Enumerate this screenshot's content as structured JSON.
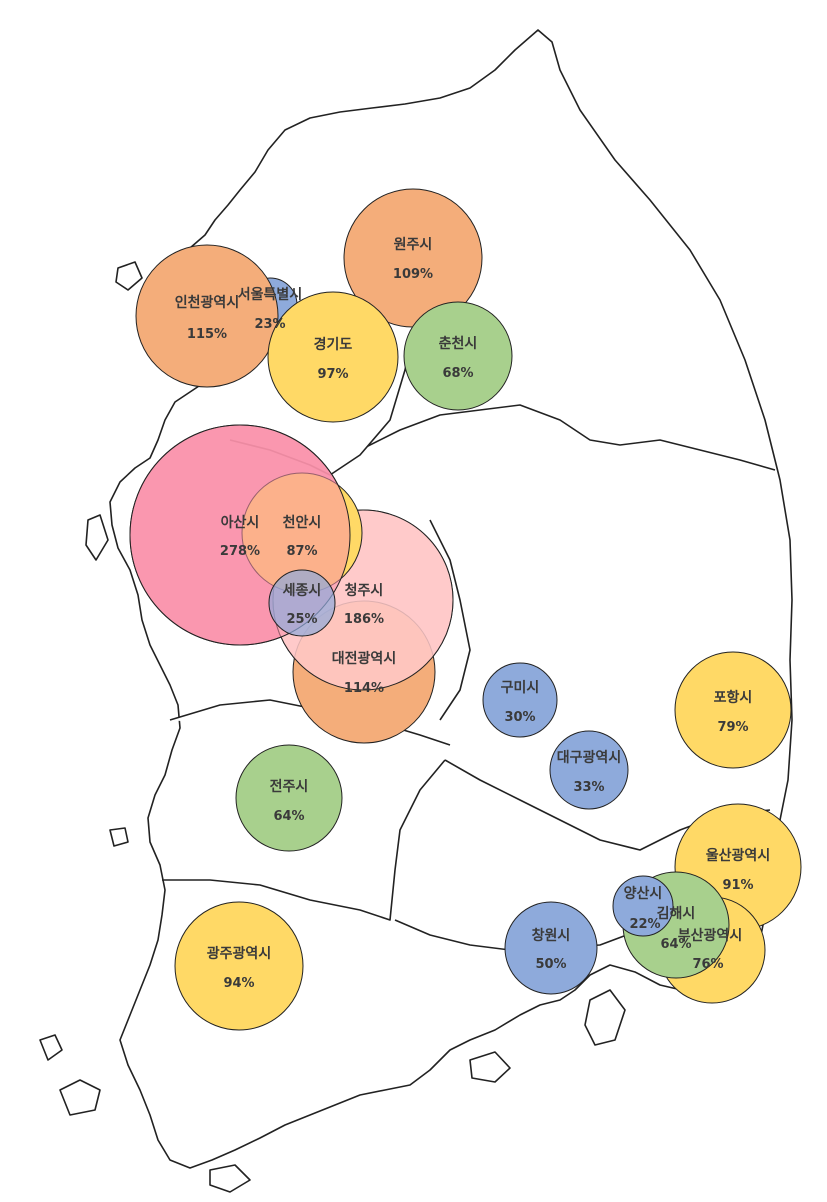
{
  "map": {
    "regions": [
      {
        "name": "아산시",
        "value": "278%",
        "ratio": 278,
        "color": "#f990aa"
      },
      {
        "name": "청주시",
        "value": "186%",
        "ratio": 186,
        "color": "#ffc9c9"
      },
      {
        "name": "인천광역시",
        "value": "115%",
        "ratio": 115,
        "color": "#f4ad7a"
      },
      {
        "name": "대전광역시",
        "value": "114%",
        "ratio": 114,
        "color": "#f4ad7a"
      },
      {
        "name": "원주시",
        "value": "109%",
        "ratio": 109,
        "color": "#f4ad7a"
      },
      {
        "name": "경기도",
        "value": "97%",
        "ratio": 97,
        "color": "#ffd966"
      },
      {
        "name": "광주광역시",
        "value": "94%",
        "ratio": 94,
        "color": "#ffd966"
      },
      {
        "name": "울산광역시",
        "value": "91%",
        "ratio": 91,
        "color": "#ffd966"
      },
      {
        "name": "천안시",
        "value": "87%",
        "ratio": 87,
        "color": "#ffd966"
      },
      {
        "name": "포항시",
        "value": "79%",
        "ratio": 79,
        "color": "#ffd966"
      },
      {
        "name": "부산광역시",
        "value": "76%",
        "ratio": 76,
        "color": "#ffd966"
      },
      {
        "name": "춘천시",
        "value": "68%",
        "ratio": 68,
        "color": "#a8d08d"
      },
      {
        "name": "전주시",
        "value": "64%",
        "ratio": 64,
        "color": "#a8d08d"
      },
      {
        "name": "김해시",
        "value": "64%",
        "ratio": 64,
        "color": "#a8d08d"
      },
      {
        "name": "창원시",
        "value": "50%",
        "ratio": 50,
        "color": "#8eaadb"
      },
      {
        "name": "대구광역시",
        "value": "33%",
        "ratio": 33,
        "color": "#8eaadb"
      },
      {
        "name": "구미시",
        "value": "30%",
        "ratio": 30,
        "color": "#8eaadb"
      },
      {
        "name": "세종시",
        "value": "25%",
        "ratio": 25,
        "color": "#8eaadb"
      },
      {
        "name": "서울특별시",
        "value": "23%",
        "ratio": 23,
        "color": "#8eaadb"
      },
      {
        "name": "양산시",
        "value": "22%",
        "ratio": 22,
        "color": "#8eaadb"
      }
    ]
  }
}
